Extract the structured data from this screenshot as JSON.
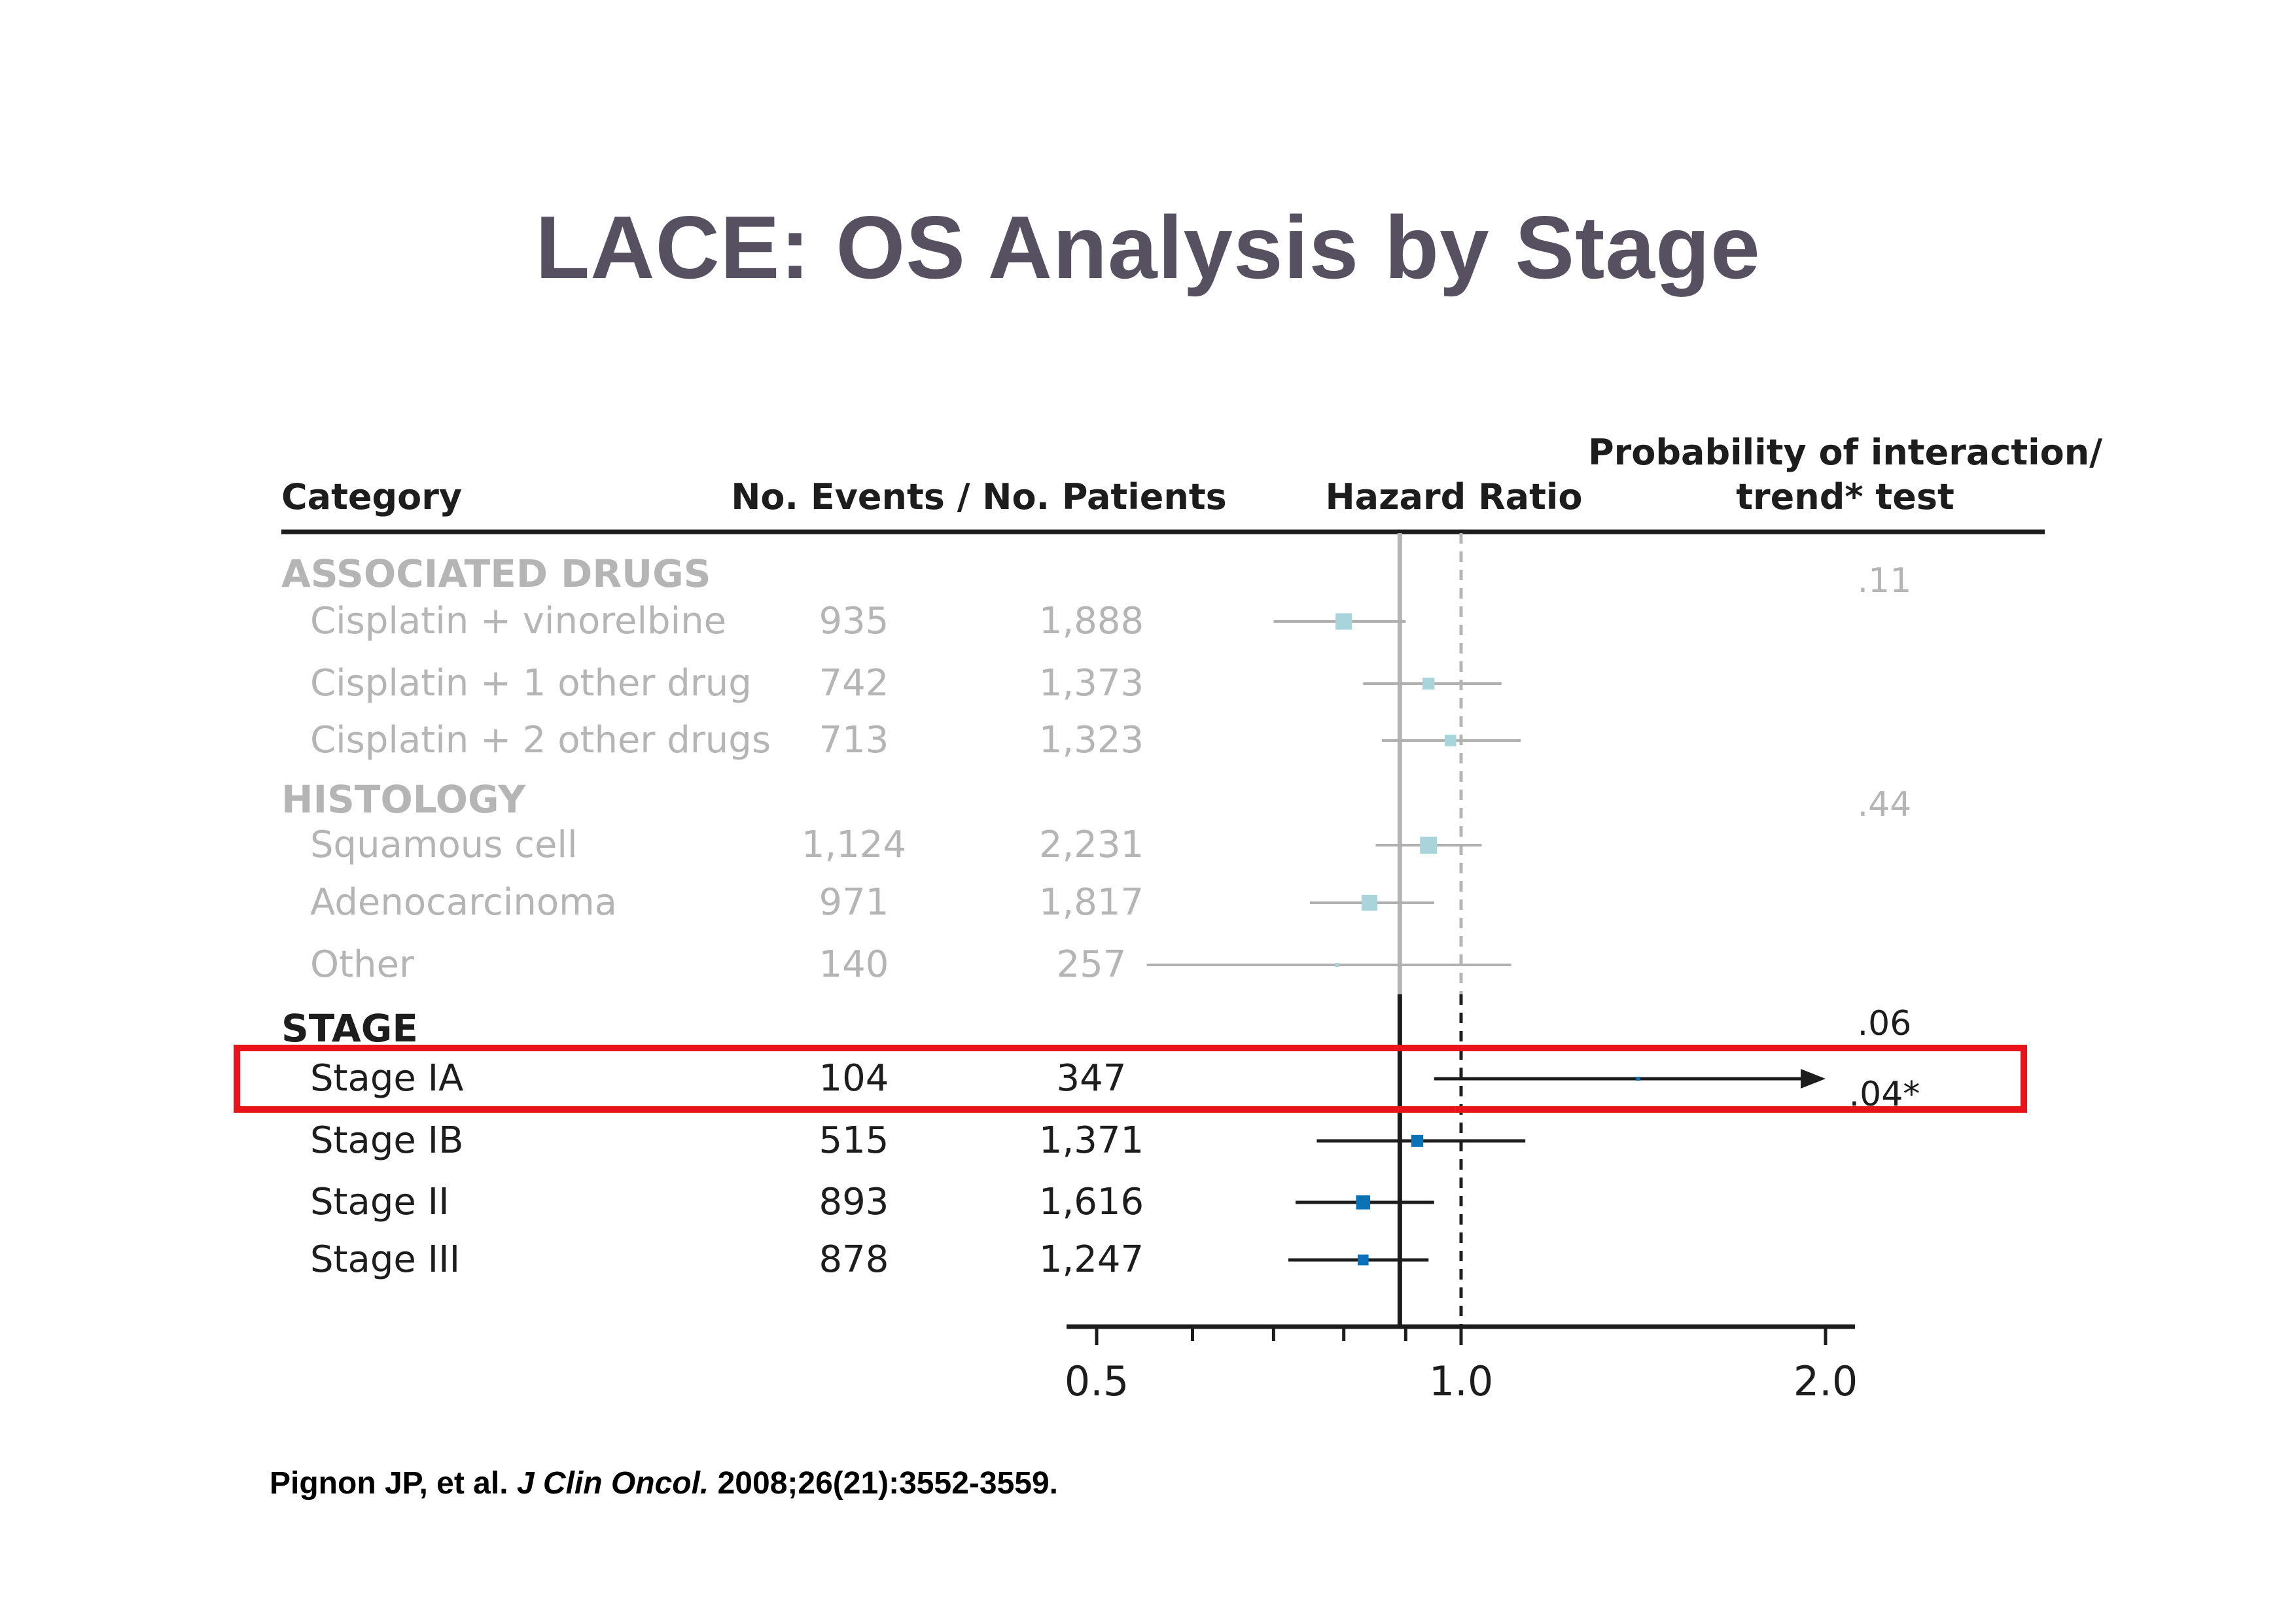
{
  "slide": {
    "title": "LACE: OS Analysis by Stage",
    "citation_authors": "Pignon JP, et al.",
    "citation_journal": "J Clin Oncol.",
    "citation_ref": "2008;26(21):3552-3559."
  },
  "colors": {
    "title": "#575061",
    "highlight": "#e8141a",
    "faded_marker": "#a9d4dc",
    "stage_marker": "#0a72b8",
    "faded_text": "#b5b5b5",
    "dark_text": "#1d1d1d"
  },
  "chart_data": {
    "type": "forest",
    "columns": {
      "category": "Category",
      "events_patients": "No. Events / No. Patients",
      "hr": "Hazard Ratio",
      "p_line1": "Probability of interaction/",
      "p_line2": "trend* test"
    },
    "x_scale": "log",
    "xlim": [
      0.47,
      2.08
    ],
    "ticks": [
      0.5,
      1.0,
      2.0
    ],
    "tick_labels": [
      "0.5",
      "1.0",
      "2.0"
    ],
    "minor_ticks": [
      0.6,
      0.7,
      0.8,
      0.9
    ],
    "overall_hr": 0.89,
    "reference": 1.0,
    "groups": [
      {
        "label": "ASSOCIATED DRUGS",
        "faded": true,
        "p": ".11",
        "rows": [
          {
            "label": "Cisplatin + vinorelbine",
            "events": "935",
            "patients": "1,888",
            "hr": 0.8,
            "lo": 0.7,
            "hi": 0.9
          },
          {
            "label": "Cisplatin + 1 other drug",
            "events": "742",
            "patients": "1,373",
            "hr": 0.94,
            "lo": 0.83,
            "hi": 1.08
          },
          {
            "label": "Cisplatin + 2 other drugs",
            "events": "713",
            "patients": "1,323",
            "hr": 0.98,
            "lo": 0.86,
            "hi": 1.12
          }
        ]
      },
      {
        "label": "HISTOLOGY",
        "faded": true,
        "p": ".44",
        "rows": [
          {
            "label": "Squamous cell",
            "events": "1,124",
            "patients": "2,231",
            "hr": 0.94,
            "lo": 0.85,
            "hi": 1.04
          },
          {
            "label": "Adenocarcinoma",
            "events": "971",
            "patients": "1,817",
            "hr": 0.84,
            "lo": 0.75,
            "hi": 0.95
          },
          {
            "label": "Other",
            "events": "140",
            "patients": "257",
            "hr": 0.79,
            "lo": 0.55,
            "hi": 1.1
          }
        ]
      },
      {
        "label": "STAGE",
        "faded": false,
        "p": ".06",
        "p2": ".04*",
        "rows": [
          {
            "label": "Stage IA",
            "events": "104",
            "patients": "347",
            "hr": 1.4,
            "lo": 0.95,
            "hi": 2.0,
            "arrow": true,
            "highlighted": true
          },
          {
            "label": "Stage IB",
            "events": "515",
            "patients": "1,371",
            "hr": 0.92,
            "lo": 0.76,
            "hi": 1.13
          },
          {
            "label": "Stage II",
            "events": "893",
            "patients": "1,616",
            "hr": 0.83,
            "lo": 0.73,
            "hi": 0.95
          },
          {
            "label": "Stage III",
            "events": "878",
            "patients": "1,247",
            "hr": 0.83,
            "lo": 0.72,
            "hi": 0.94
          }
        ]
      }
    ]
  }
}
